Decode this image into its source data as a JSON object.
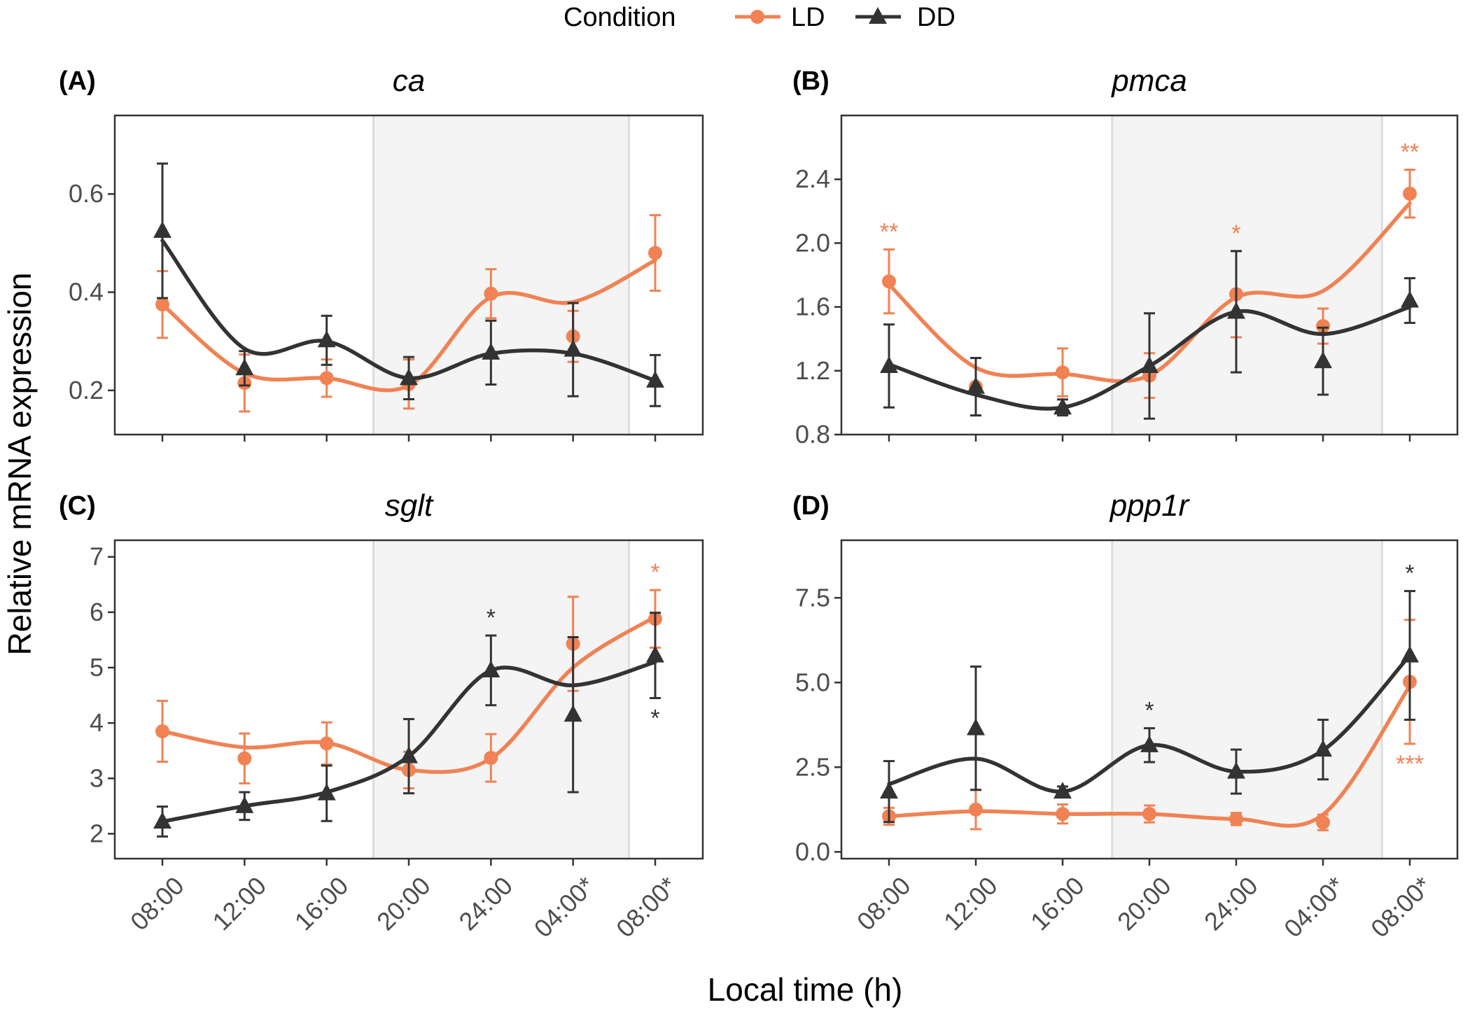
{
  "colors": {
    "LD": "#F08254",
    "DD": "#333333",
    "night_shade": "#F4F4F4",
    "night_edge": "#DDDDDD",
    "frame": "#333333"
  },
  "legend": {
    "title": "Condition",
    "items": [
      {
        "label": "LD",
        "marker": "circle"
      },
      {
        "label": "DD",
        "marker": "triangle"
      }
    ]
  },
  "xlabel": "Local time (h)",
  "ylabel": "Relative mRNA expression",
  "chart_data": [
    {
      "type": "line",
      "tag": "(A)",
      "title": "ca",
      "categories": [
        "08:00",
        "12:00",
        "16:00",
        "20:00",
        "24:00",
        "04:00*",
        "08:00*"
      ],
      "night": [
        2.57,
        5.68
      ],
      "ylim": [
        0.11,
        0.76
      ],
      "yticks": [
        0.2,
        0.4,
        0.6
      ],
      "yticklabels": [
        "0.2",
        "0.4",
        "0.6"
      ],
      "series": [
        {
          "name": "LD",
          "values": [
            0.375,
            0.215,
            0.225,
            0.213,
            0.397,
            0.31,
            0.48
          ],
          "err": [
            0.068,
            0.058,
            0.038,
            0.05,
            0.05,
            0.052,
            0.077
          ],
          "smooth": [
            0.375,
            0.235,
            0.225,
            0.21,
            0.39,
            0.38,
            0.465
          ],
          "stars": [
            "",
            "",
            "",
            "",
            "",
            "",
            ""
          ]
        },
        {
          "name": "DD",
          "values": [
            0.525,
            0.245,
            0.302,
            0.225,
            0.277,
            0.283,
            0.22
          ],
          "err": [
            0.137,
            0.035,
            0.05,
            0.043,
            0.065,
            0.095,
            0.052
          ],
          "smooth": [
            0.505,
            0.285,
            0.3,
            0.225,
            0.275,
            0.275,
            0.22
          ],
          "stars": [
            "",
            "",
            "",
            "",
            "",
            "",
            ""
          ]
        }
      ]
    },
    {
      "type": "line",
      "tag": "(B)",
      "title": "pmca",
      "categories": [
        "08:00",
        "12:00",
        "16:00",
        "20:00",
        "24:00",
        "04:00*",
        "08:00*"
      ],
      "night": [
        2.57,
        5.68
      ],
      "ylim": [
        0.8,
        2.8
      ],
      "yticks": [
        0.8,
        1.2,
        1.6,
        2.0,
        2.4
      ],
      "yticklabels": [
        "0.8",
        "1.2",
        "1.6",
        "2.0",
        "2.4"
      ],
      "series": [
        {
          "name": "LD",
          "values": [
            1.76,
            1.1,
            1.19,
            1.17,
            1.68,
            1.48,
            2.31
          ],
          "err": [
            0.2,
            0.18,
            0.15,
            0.14,
            0.27,
            0.11,
            0.15
          ],
          "smooth": [
            1.74,
            1.22,
            1.18,
            1.17,
            1.66,
            1.7,
            2.25
          ],
          "stars": [
            "**",
            "",
            "",
            "",
            "*",
            "",
            "**"
          ]
        },
        {
          "name": "DD",
          "values": [
            1.23,
            1.1,
            0.97,
            1.23,
            1.57,
            1.26,
            1.64
          ],
          "err": [
            0.26,
            0.18,
            0.05,
            0.33,
            0.38,
            0.21,
            0.14
          ],
          "smooth": [
            1.24,
            1.05,
            0.97,
            1.23,
            1.57,
            1.43,
            1.6
          ],
          "stars": [
            "",
            "",
            "",
            "",
            "",
            "",
            ""
          ]
        }
      ]
    },
    {
      "type": "line",
      "tag": "(C)",
      "title": "sglt",
      "categories": [
        "08:00",
        "12:00",
        "16:00",
        "20:00",
        "24:00",
        "04:00*",
        "08:00*"
      ],
      "night": [
        2.57,
        5.68
      ],
      "ylim": [
        1.55,
        7.3
      ],
      "yticks": [
        2,
        3,
        4,
        5,
        6,
        7
      ],
      "yticklabels": [
        "2",
        "3",
        "4",
        "5",
        "6",
        "7"
      ],
      "series": [
        {
          "name": "LD",
          "values": [
            3.85,
            3.36,
            3.63,
            3.15,
            3.37,
            5.43,
            5.88
          ],
          "err": [
            0.55,
            0.45,
            0.38,
            0.33,
            0.43,
            0.85,
            0.52
          ],
          "smooth": [
            3.85,
            3.56,
            3.64,
            3.15,
            3.36,
            5.0,
            5.92
          ],
          "stars": [
            "",
            "",
            "",
            "",
            "",
            "",
            "*"
          ]
        },
        {
          "name": "DD",
          "values": [
            2.22,
            2.5,
            2.73,
            3.4,
            4.95,
            4.15,
            5.22
          ],
          "err": [
            0.27,
            0.25,
            0.5,
            0.67,
            0.63,
            1.4,
            0.77
          ],
          "smooth": [
            2.22,
            2.5,
            2.75,
            3.4,
            4.95,
            4.68,
            5.1
          ],
          "stars": [
            "",
            "",
            "",
            "",
            "*",
            "",
            "*"
          ]
        }
      ]
    },
    {
      "type": "line",
      "tag": "(D)",
      "title": "ppp1r",
      "categories": [
        "08:00",
        "12:00",
        "16:00",
        "20:00",
        "24:00",
        "04:00*",
        "08:00*"
      ],
      "night": [
        2.57,
        5.68
      ],
      "ylim": [
        -0.2,
        9.2
      ],
      "yticks": [
        0.0,
        2.5,
        5.0,
        7.5
      ],
      "yticklabels": [
        "0.0",
        "2.5",
        "5.0",
        "7.5"
      ],
      "series": [
        {
          "name": "LD",
          "values": [
            1.05,
            1.25,
            1.12,
            1.12,
            0.97,
            0.87,
            5.02
          ],
          "err": [
            0.25,
            0.58,
            0.28,
            0.25,
            0.18,
            0.23,
            1.83
          ],
          "smooth": [
            1.05,
            1.2,
            1.12,
            1.12,
            0.97,
            1.1,
            4.9
          ],
          "stars": [
            "",
            "",
            "",
            "",
            "",
            "",
            "***"
          ]
        },
        {
          "name": "DD",
          "values": [
            1.78,
            3.65,
            1.78,
            3.15,
            2.37,
            3.02,
            5.8
          ],
          "err": [
            0.9,
            1.82,
            0.15,
            0.5,
            0.65,
            0.88,
            1.9
          ],
          "smooth": [
            2.0,
            2.75,
            1.78,
            3.15,
            2.37,
            3.0,
            5.8
          ],
          "stars": [
            "",
            "",
            "",
            "*",
            "",
            "",
            "*"
          ]
        }
      ]
    }
  ]
}
